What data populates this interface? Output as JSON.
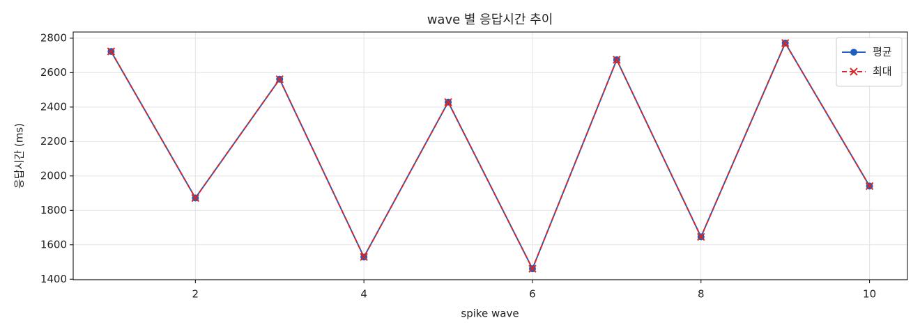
{
  "chart_data": {
    "type": "line",
    "title": "wave 별 응답시간 추이",
    "x_label": "spike wave",
    "y_label": "응답시간 (ms)",
    "x": [
      1,
      2,
      3,
      4,
      5,
      6,
      7,
      8,
      9,
      10
    ],
    "series": [
      {
        "name": "평균",
        "color": "#1f5fbf",
        "marker": "o",
        "dash": "solid",
        "values": [
          2723,
          1872,
          2562,
          1529,
          2429,
          1461,
          2675,
          1646,
          2772,
          1941
        ]
      },
      {
        "name": "최대",
        "color": "#d62728",
        "marker": "x",
        "dash": "dashed",
        "values": [
          2723,
          1872,
          2562,
          1529,
          2429,
          1461,
          2675,
          1646,
          2772,
          1941
        ]
      }
    ],
    "xlim": [
      0.55,
      10.45
    ],
    "ylim": [
      1397,
      2836
    ],
    "xticks": [
      2,
      4,
      6,
      8,
      10
    ],
    "yticks": [
      1400,
      1600,
      1800,
      2000,
      2200,
      2400,
      2600,
      2800
    ],
    "grid": true,
    "legend": "upper right"
  }
}
